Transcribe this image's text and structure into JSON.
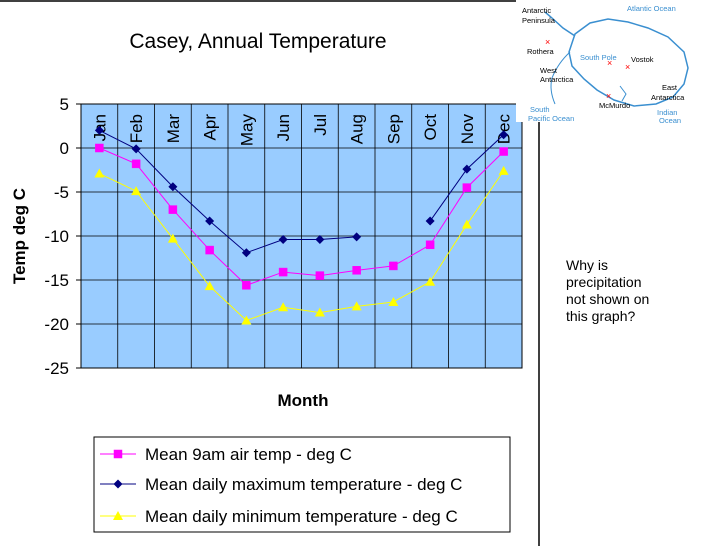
{
  "chart_data": {
    "type": "line",
    "title": "Casey, Annual Temperature",
    "xlabel": "Month",
    "ylabel": "Temp deg C",
    "categories": [
      "Jan",
      "Feb",
      "Mar",
      "Apr",
      "May",
      "Jun",
      "Jul",
      "Aug",
      "Sep",
      "Oct",
      "Nov",
      "Dec"
    ],
    "ylim": [
      -25,
      5
    ],
    "yticks": [
      "5",
      "0",
      "-5",
      "-10",
      "-15",
      "-20",
      "-25"
    ],
    "grid": true,
    "plot_background": "#99ccff",
    "legend_position": "bottom",
    "series": [
      {
        "name": "Mean 9am air temp - deg C",
        "color": "#ff00ff",
        "marker": "square",
        "values": [
          0.0,
          -1.8,
          -7.0,
          -11.6,
          -15.6,
          -14.1,
          -14.5,
          -13.9,
          -13.4,
          -11.0,
          -4.5,
          -0.4
        ]
      },
      {
        "name": "Mean daily maximum temperature - deg C",
        "color": "#000080",
        "marker": "diamond",
        "values": [
          2.0,
          -0.1,
          -4.4,
          -8.3,
          -11.9,
          -10.4,
          -10.4,
          -10.1,
          null,
          -8.3,
          -2.4,
          1.5
        ]
      },
      {
        "name": "Mean daily minimum temperature - deg C",
        "color": "#ffff00",
        "marker": "triangle",
        "values": [
          -2.9,
          -4.9,
          -10.3,
          -15.7,
          -19.6,
          -18.1,
          -18.7,
          -18.0,
          -17.5,
          -15.2,
          -8.7,
          -2.6
        ]
      }
    ]
  },
  "annotation": {
    "lines": [
      "Why is",
      "precipitation",
      "not shown on",
      "this graph?"
    ]
  },
  "map": {
    "labels": [
      "Antarctic",
      "Peninsula",
      "Rothera",
      "South Pole",
      "Vostok",
      "West",
      "Antarctica",
      "East",
      "Antarctica",
      "McMurdo"
    ],
    "oceans": [
      "Atlantic Ocean",
      "South",
      "Pacific Ocean",
      "Indian",
      "Ocean"
    ],
    "land_color": "#ffffff",
    "ocean_color": "#3a8fd0",
    "marker_color": "#ff0000"
  }
}
